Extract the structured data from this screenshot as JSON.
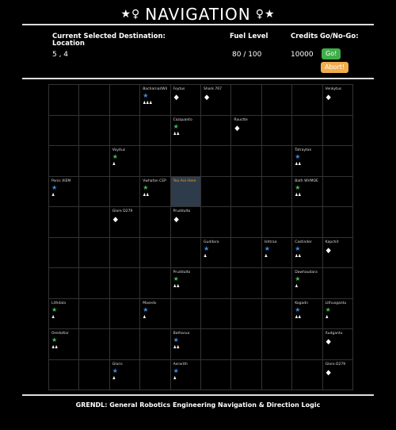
{
  "title": "NAVIGATION",
  "header": {
    "dest_label": "Current Selected Destination: Location",
    "dest_value": "5 , 4",
    "fuel_label": "Fuel Level",
    "fuel_value": "80 / 100",
    "credits_label": "Credits",
    "credits_value": "10000",
    "gonogo_label": "Go/No-Go:",
    "go_label": "Go!",
    "abort_label": "Abort!"
  },
  "colors": {
    "star_blue": "#3a8ee6",
    "star_green": "#3fbf4f",
    "selected": "#2e3b4a",
    "you_are_here": "#f0a030"
  },
  "grid": {
    "rows": 10,
    "cols": 10,
    "cells": [
      {
        "r": 0,
        "c": 3,
        "name": "Bacharnal/Wil",
        "icon": "star",
        "color": "blue",
        "people": 3
      },
      {
        "r": 0,
        "c": 4,
        "name": "Foytus",
        "icon": "drop",
        "people": 0
      },
      {
        "r": 0,
        "c": 5,
        "name": "Shark 767",
        "icon": "drop",
        "people": 0
      },
      {
        "r": 0,
        "c": 9,
        "name": "Venkytus",
        "icon": "drop",
        "people": 0
      },
      {
        "r": 1,
        "c": 4,
        "name": "Cazquanto",
        "icon": "star",
        "color": "green",
        "people": 2
      },
      {
        "r": 1,
        "c": 6,
        "name": "Rauctte",
        "icon": "drop",
        "people": 0
      },
      {
        "r": 2,
        "c": 2,
        "name": "Voyitus",
        "icon": "star",
        "color": "green",
        "people": 1
      },
      {
        "r": 2,
        "c": 8,
        "name": "Tatraytan",
        "icon": "star",
        "color": "blue",
        "people": 2
      },
      {
        "r": 3,
        "c": 0,
        "name": "Ponis XIEM",
        "icon": "star",
        "color": "blue",
        "people": 1
      },
      {
        "r": 3,
        "c": 3,
        "name": "Vwhafan CEP",
        "icon": "star",
        "color": "green",
        "people": 2
      },
      {
        "r": 3,
        "c": 4,
        "name": "You Are Here",
        "selected": true
      },
      {
        "r": 3,
        "c": 8,
        "name": "Bath WVMOE",
        "icon": "star",
        "color": "green",
        "people": 2
      },
      {
        "r": 4,
        "c": 2,
        "name": "Glore D279",
        "icon": "drop",
        "people": 0
      },
      {
        "r": 4,
        "c": 4,
        "name": "Pruddulto",
        "icon": "drop",
        "people": 0
      },
      {
        "r": 5,
        "c": 5,
        "name": "Guddara",
        "icon": "star",
        "color": "blue",
        "people": 1
      },
      {
        "r": 5,
        "c": 7,
        "name": "Ishtraa",
        "icon": "star",
        "color": "blue",
        "people": 1
      },
      {
        "r": 5,
        "c": 8,
        "name": "Castinder",
        "icon": "star",
        "color": "blue",
        "people": 2
      },
      {
        "r": 5,
        "c": 9,
        "name": "Kapchit",
        "icon": "drop",
        "people": 0
      },
      {
        "r": 6,
        "c": 4,
        "name": "Pruddulto",
        "icon": "star",
        "color": "green",
        "people": 2
      },
      {
        "r": 6,
        "c": 8,
        "name": "Dawhaudara",
        "icon": "star",
        "color": "green",
        "people": 1
      },
      {
        "r": 7,
        "c": 0,
        "name": "Lithdala",
        "icon": "star",
        "color": "green",
        "people": 1
      },
      {
        "r": 7,
        "c": 3,
        "name": "Masedv",
        "icon": "star",
        "color": "blue",
        "people": 1
      },
      {
        "r": 7,
        "c": 8,
        "name": "Kogadn",
        "icon": "star",
        "color": "blue",
        "people": 2
      },
      {
        "r": 7,
        "c": 9,
        "name": "Lithusgantu",
        "icon": "star",
        "color": "green",
        "people": 1
      },
      {
        "r": 8,
        "c": 0,
        "name": "Oredottor",
        "icon": "star",
        "color": "green",
        "people": 2
      },
      {
        "r": 8,
        "c": 4,
        "name": "Batharua",
        "icon": "star",
        "color": "blue",
        "people": 2
      },
      {
        "r": 8,
        "c": 9,
        "name": "Xudgantu",
        "icon": "drop",
        "people": 0
      },
      {
        "r": 9,
        "c": 2,
        "name": "Gloris",
        "icon": "star",
        "color": "blue",
        "people": 1
      },
      {
        "r": 9,
        "c": 4,
        "name": "Aerarith",
        "icon": "star",
        "color": "blue",
        "people": 1
      },
      {
        "r": 9,
        "c": 9,
        "name": "Glore D279",
        "icon": "drop",
        "people": 0
      }
    ]
  },
  "footer": "GRENDL: General Robotics Engineering Navigation & Direction Logic"
}
